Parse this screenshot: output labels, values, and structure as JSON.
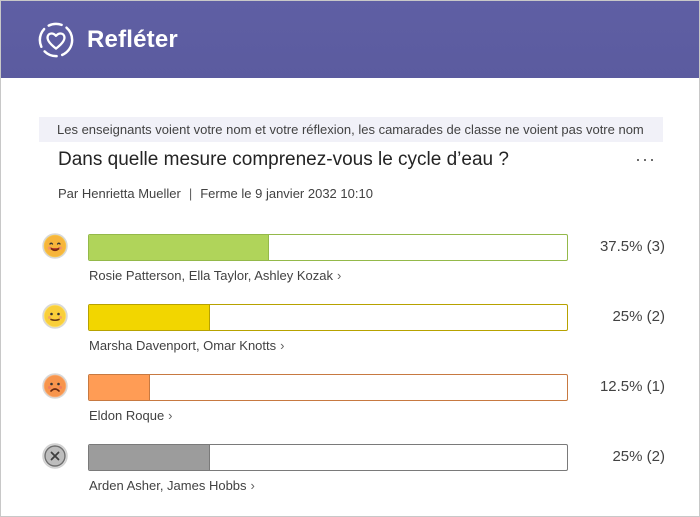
{
  "app": {
    "title": "Refléter",
    "logo_icon": "heart-in-dashed-circle-icon"
  },
  "privacy_notice": "Les enseignants voient votre nom et votre réflexion, les camarades de classe ne voient pas votre nom",
  "question": {
    "title": "Dans quelle mesure comprenez-vous le cycle d’eau ?",
    "more_label": "···",
    "author": "Par Henrietta Mueller",
    "separator": "|",
    "closing": "Ferme le 9 janvier 2032 10:10"
  },
  "chart_data": {
    "type": "bar",
    "categories": [
      "happy",
      "neutral",
      "sad",
      "no-response"
    ],
    "values": [
      37.5,
      25,
      12.5,
      25
    ],
    "counts": [
      3,
      2,
      1,
      2
    ]
  },
  "responses": [
    {
      "face_icon": "happy-face-icon",
      "color": "#b0d45a",
      "border": "#94b94a",
      "fraction": 0.375,
      "percent_label": "37.5% (3)",
      "names": "Rosie Patterson, Ella Taylor, Ashley Kozak",
      "chevron": "›"
    },
    {
      "face_icon": "neutral-face-icon",
      "color": "#f2d600",
      "border": "#b7a200",
      "fraction": 0.25,
      "percent_label": "25% (2)",
      "names": "Marsha Davenport, Omar Knotts",
      "chevron": "›"
    },
    {
      "face_icon": "sad-face-icon",
      "color": "#ff9c55",
      "border": "#c77941",
      "fraction": 0.125,
      "percent_label": "12.5% (1)",
      "names": "Eldon Roque",
      "chevron": "›"
    },
    {
      "face_icon": "no-response-icon",
      "color": "#9c9c9c",
      "border": "#7a7a7a",
      "fraction": 0.25,
      "percent_label": "25% (2)",
      "names": "Arden Asher, James Hobbs",
      "chevron": "›"
    }
  ]
}
